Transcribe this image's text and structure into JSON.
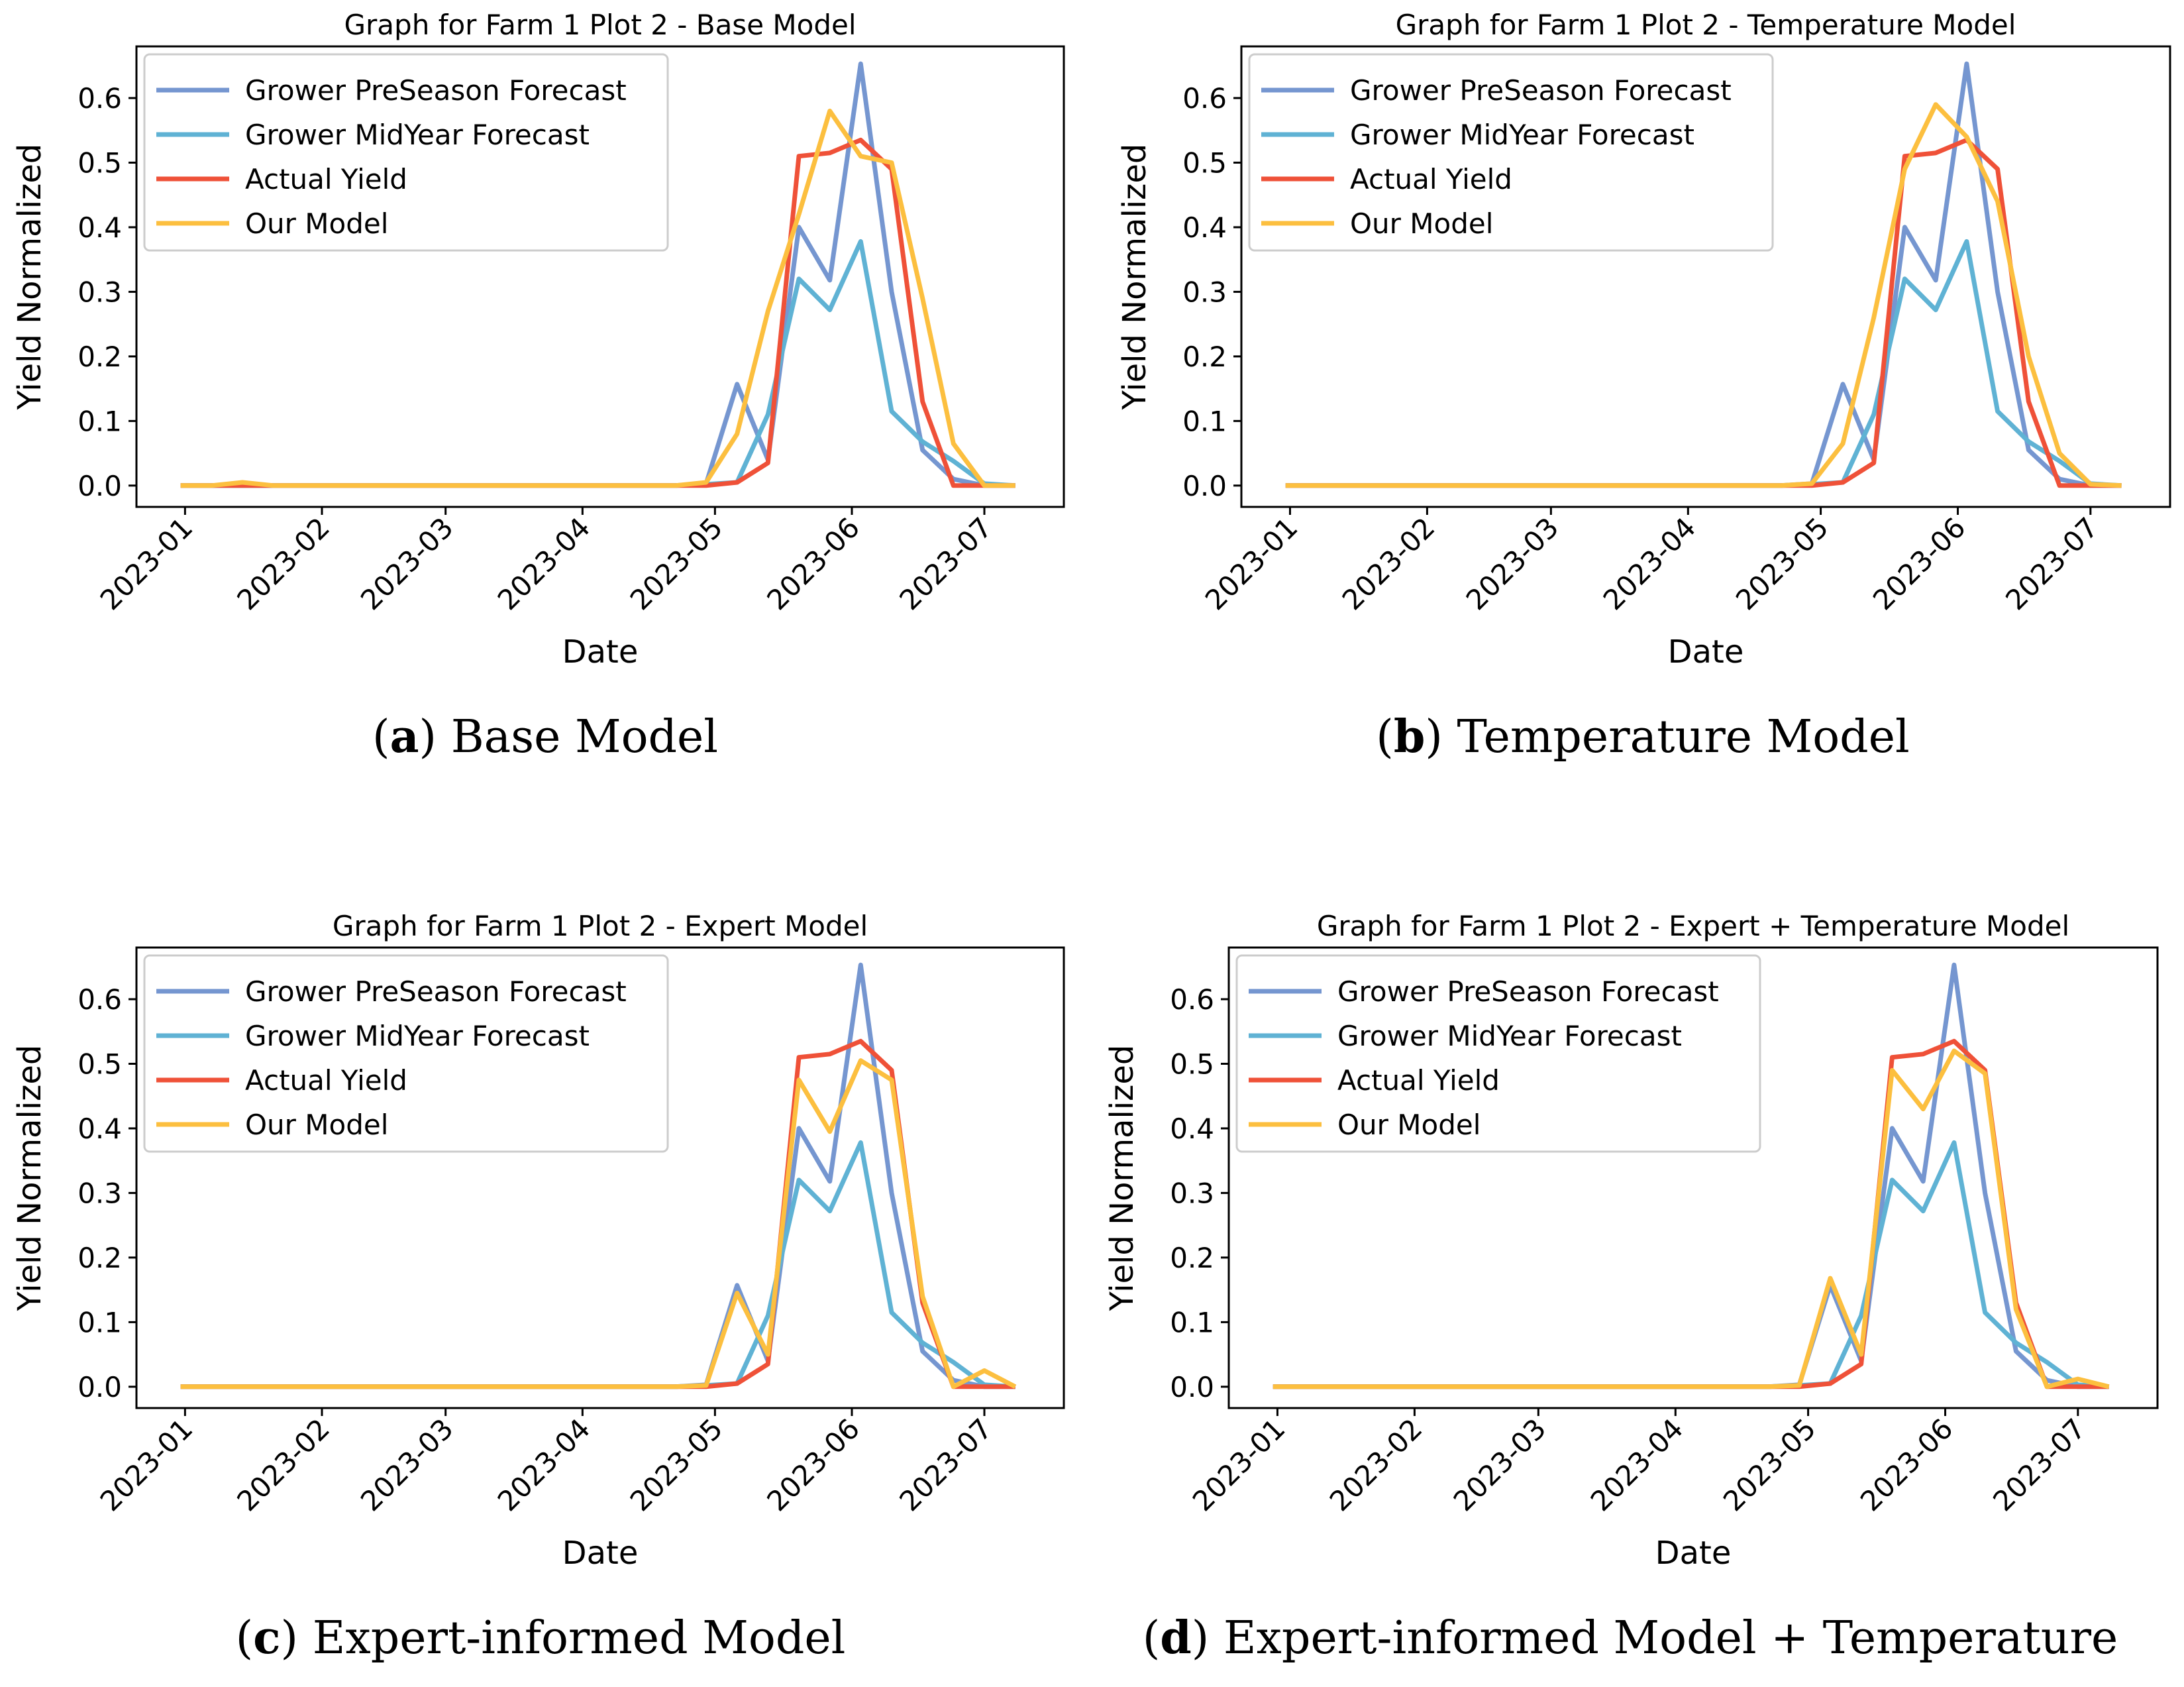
{
  "figure": {
    "captions": [
      {
        "letter": "a",
        "paren_open": "(",
        "paren_close": ")",
        "text": " Base Model"
      },
      {
        "letter": "b",
        "paren_open": "(",
        "paren_close": ")",
        "text": " Temperature Model"
      },
      {
        "letter": "c",
        "paren_open": "(",
        "paren_close": ")",
        "text": " Expert-informed Model"
      },
      {
        "letter": "d",
        "paren_open": "(",
        "paren_close": ")",
        "text": " Expert-informed Model + Temperature"
      }
    ]
  },
  "colors": {
    "preseason": "#7596d0",
    "midyear": "#5fb2d4",
    "actual": "#ef5138",
    "model": "#fcbf3f"
  },
  "chart_data": [
    {
      "type": "line",
      "title": "Graph for Farm 1 Plot 2 - Base Model",
      "xlabel": "Date",
      "ylabel": "Yield Normalized",
      "x_ticks": [
        "2023-01",
        "2023-02",
        "2023-03",
        "2023-04",
        "2023-05",
        "2023-06",
        "2023-07"
      ],
      "x_tick_dates": [
        "2023-01-01",
        "2023-02-01",
        "2023-03-01",
        "2023-04-01",
        "2023-05-01",
        "2023-06-01",
        "2023-07-01"
      ],
      "y_ticks": [
        "0.0",
        "0.1",
        "0.2",
        "0.3",
        "0.4",
        "0.5",
        "0.6"
      ],
      "xlim": [
        "2022-12-21",
        "2023-07-19"
      ],
      "ylim": [
        -0.033,
        0.68
      ],
      "legend": "upper-left",
      "x": [
        "2022-12-31",
        "2023-01-07",
        "2023-01-14",
        "2023-01-21",
        "2023-01-28",
        "2023-02-04",
        "2023-02-11",
        "2023-02-18",
        "2023-02-25",
        "2023-03-04",
        "2023-03-11",
        "2023-03-18",
        "2023-03-25",
        "2023-04-01",
        "2023-04-08",
        "2023-04-15",
        "2023-04-22",
        "2023-04-29",
        "2023-05-06",
        "2023-05-13",
        "2023-05-20",
        "2023-05-27",
        "2023-06-03",
        "2023-06-10",
        "2023-06-17",
        "2023-06-24",
        "2023-07-01",
        "2023-07-08"
      ],
      "series": [
        {
          "name": "Grower PreSeason Forecast",
          "color_key": "preseason",
          "values": [
            0,
            0,
            0,
            0,
            0,
            0,
            0,
            0,
            0,
            0,
            0,
            0,
            0,
            0,
            0,
            0,
            0,
            0.003,
            0.157,
            0.04,
            0.4,
            0.318,
            0.653,
            0.3,
            0.055,
            0.01,
            0,
            0
          ]
        },
        {
          "name": "Grower MidYear Forecast",
          "color_key": "midyear",
          "values": [
            0,
            0,
            0,
            0,
            0,
            0,
            0,
            0,
            0,
            0,
            0,
            0,
            0,
            0,
            0,
            0,
            0,
            0.002,
            0.005,
            0.11,
            0.32,
            0.272,
            0.378,
            0.115,
            0.068,
            0.038,
            0.003,
            0
          ]
        },
        {
          "name": "Actual Yield",
          "color_key": "actual",
          "values": [
            0,
            0,
            0,
            0,
            0,
            0,
            0,
            0,
            0,
            0,
            0,
            0,
            0,
            0,
            0,
            0,
            0,
            0,
            0.005,
            0.035,
            0.51,
            0.515,
            0.535,
            0.49,
            0.13,
            0,
            0,
            0
          ]
        },
        {
          "name": "Our Model",
          "color_key": "model",
          "values": [
            0,
            0,
            0.005,
            0,
            0,
            0,
            0,
            0,
            0,
            0,
            0,
            0,
            0,
            0,
            0,
            0,
            0,
            0.005,
            0.08,
            0.27,
            0.42,
            0.58,
            0.51,
            0.5,
            0.29,
            0.065,
            0,
            0
          ]
        }
      ]
    },
    {
      "type": "line",
      "title": "Graph for Farm 1 Plot 2 - Temperature Model",
      "xlabel": "Date",
      "ylabel": "Yield Normalized",
      "x_ticks": [
        "2023-01",
        "2023-02",
        "2023-03",
        "2023-04",
        "2023-05",
        "2023-06",
        "2023-07"
      ],
      "x_tick_dates": [
        "2023-01-01",
        "2023-02-01",
        "2023-03-01",
        "2023-04-01",
        "2023-05-01",
        "2023-06-01",
        "2023-07-01"
      ],
      "y_ticks": [
        "0.0",
        "0.1",
        "0.2",
        "0.3",
        "0.4",
        "0.5",
        "0.6"
      ],
      "xlim": [
        "2022-12-21",
        "2023-07-19"
      ],
      "ylim": [
        -0.033,
        0.68
      ],
      "legend": "upper-left",
      "x": [
        "2022-12-31",
        "2023-01-07",
        "2023-01-14",
        "2023-01-21",
        "2023-01-28",
        "2023-02-04",
        "2023-02-11",
        "2023-02-18",
        "2023-02-25",
        "2023-03-04",
        "2023-03-11",
        "2023-03-18",
        "2023-03-25",
        "2023-04-01",
        "2023-04-08",
        "2023-04-15",
        "2023-04-22",
        "2023-04-29",
        "2023-05-06",
        "2023-05-13",
        "2023-05-20",
        "2023-05-27",
        "2023-06-03",
        "2023-06-10",
        "2023-06-17",
        "2023-06-24",
        "2023-07-01",
        "2023-07-08"
      ],
      "series": [
        {
          "name": "Grower PreSeason Forecast",
          "color_key": "preseason",
          "values": [
            0,
            0,
            0,
            0,
            0,
            0,
            0,
            0,
            0,
            0,
            0,
            0,
            0,
            0,
            0,
            0,
            0,
            0.003,
            0.157,
            0.04,
            0.4,
            0.318,
            0.653,
            0.3,
            0.055,
            0.01,
            0,
            0
          ]
        },
        {
          "name": "Grower MidYear Forecast",
          "color_key": "midyear",
          "values": [
            0,
            0,
            0,
            0,
            0,
            0,
            0,
            0,
            0,
            0,
            0,
            0,
            0,
            0,
            0,
            0,
            0,
            0.002,
            0.005,
            0.11,
            0.32,
            0.272,
            0.378,
            0.115,
            0.068,
            0.038,
            0.003,
            0
          ]
        },
        {
          "name": "Actual Yield",
          "color_key": "actual",
          "values": [
            0,
            0,
            0,
            0,
            0,
            0,
            0,
            0,
            0,
            0,
            0,
            0,
            0,
            0,
            0,
            0,
            0,
            0,
            0.005,
            0.035,
            0.51,
            0.515,
            0.535,
            0.49,
            0.13,
            0,
            0,
            0
          ]
        },
        {
          "name": "Our Model",
          "color_key": "model",
          "values": [
            0,
            0,
            0,
            0,
            0,
            0,
            0,
            0,
            0,
            0,
            0,
            0,
            0,
            0,
            0,
            0,
            0,
            0.003,
            0.065,
            0.26,
            0.49,
            0.59,
            0.54,
            0.44,
            0.2,
            0.05,
            0.002,
            0
          ]
        }
      ]
    },
    {
      "type": "line",
      "title": "Graph for Farm 1 Plot 2 - Expert Model",
      "xlabel": "Date",
      "ylabel": "Yield Normalized",
      "x_ticks": [
        "2023-01",
        "2023-02",
        "2023-03",
        "2023-04",
        "2023-05",
        "2023-06",
        "2023-07"
      ],
      "x_tick_dates": [
        "2023-01-01",
        "2023-02-01",
        "2023-03-01",
        "2023-04-01",
        "2023-05-01",
        "2023-06-01",
        "2023-07-01"
      ],
      "y_ticks": [
        "0.0",
        "0.1",
        "0.2",
        "0.3",
        "0.4",
        "0.5",
        "0.6"
      ],
      "xlim": [
        "2022-12-21",
        "2023-07-19"
      ],
      "ylim": [
        -0.033,
        0.68
      ],
      "legend": "upper-left",
      "x": [
        "2022-12-31",
        "2023-01-07",
        "2023-01-14",
        "2023-01-21",
        "2023-01-28",
        "2023-02-04",
        "2023-02-11",
        "2023-02-18",
        "2023-02-25",
        "2023-03-04",
        "2023-03-11",
        "2023-03-18",
        "2023-03-25",
        "2023-04-01",
        "2023-04-08",
        "2023-04-15",
        "2023-04-22",
        "2023-04-29",
        "2023-05-06",
        "2023-05-13",
        "2023-05-20",
        "2023-05-27",
        "2023-06-03",
        "2023-06-10",
        "2023-06-17",
        "2023-06-24",
        "2023-07-01",
        "2023-07-08"
      ],
      "series": [
        {
          "name": "Grower PreSeason Forecast",
          "color_key": "preseason",
          "values": [
            0,
            0,
            0,
            0,
            0,
            0,
            0,
            0,
            0,
            0,
            0,
            0,
            0,
            0,
            0,
            0,
            0,
            0.003,
            0.157,
            0.04,
            0.4,
            0.318,
            0.653,
            0.3,
            0.055,
            0.01,
            0,
            0
          ]
        },
        {
          "name": "Grower MidYear Forecast",
          "color_key": "midyear",
          "values": [
            0,
            0,
            0,
            0,
            0,
            0,
            0,
            0,
            0,
            0,
            0,
            0,
            0,
            0,
            0,
            0,
            0,
            0.002,
            0.005,
            0.11,
            0.32,
            0.272,
            0.378,
            0.115,
            0.068,
            0.038,
            0.003,
            0
          ]
        },
        {
          "name": "Actual Yield",
          "color_key": "actual",
          "values": [
            0,
            0,
            0,
            0,
            0,
            0,
            0,
            0,
            0,
            0,
            0,
            0,
            0,
            0,
            0,
            0,
            0,
            0,
            0.005,
            0.035,
            0.51,
            0.515,
            0.535,
            0.49,
            0.13,
            0,
            0,
            0
          ]
        },
        {
          "name": "Our Model",
          "color_key": "model",
          "values": [
            0,
            0,
            0,
            0,
            0,
            0,
            0,
            0,
            0,
            0,
            0,
            0,
            0,
            0,
            0,
            0,
            0,
            0.002,
            0.145,
            0.05,
            0.475,
            0.395,
            0.505,
            0.475,
            0.14,
            0,
            0.025,
            0
          ]
        }
      ]
    },
    {
      "type": "line",
      "title": "Graph for Farm 1 Plot 2 - Expert + Temperature Model",
      "xlabel": "Date",
      "ylabel": "Yield Normalized",
      "x_ticks": [
        "2023-01",
        "2023-02",
        "2023-03",
        "2023-04",
        "2023-05",
        "2023-06",
        "2023-07"
      ],
      "x_tick_dates": [
        "2023-01-01",
        "2023-02-01",
        "2023-03-01",
        "2023-04-01",
        "2023-05-01",
        "2023-06-01",
        "2023-07-01"
      ],
      "y_ticks": [
        "0.0",
        "0.1",
        "0.2",
        "0.3",
        "0.4",
        "0.5",
        "0.6"
      ],
      "xlim": [
        "2022-12-21",
        "2023-07-19"
      ],
      "ylim": [
        -0.033,
        0.68
      ],
      "legend": "upper-left",
      "x": [
        "2022-12-31",
        "2023-01-07",
        "2023-01-14",
        "2023-01-21",
        "2023-01-28",
        "2023-02-04",
        "2023-02-11",
        "2023-02-18",
        "2023-02-25",
        "2023-03-04",
        "2023-03-11",
        "2023-03-18",
        "2023-03-25",
        "2023-04-01",
        "2023-04-08",
        "2023-04-15",
        "2023-04-22",
        "2023-04-29",
        "2023-05-06",
        "2023-05-13",
        "2023-05-20",
        "2023-05-27",
        "2023-06-03",
        "2023-06-10",
        "2023-06-17",
        "2023-06-24",
        "2023-07-01",
        "2023-07-08"
      ],
      "series": [
        {
          "name": "Grower PreSeason Forecast",
          "color_key": "preseason",
          "values": [
            0,
            0,
            0,
            0,
            0,
            0,
            0,
            0,
            0,
            0,
            0,
            0,
            0,
            0,
            0,
            0,
            0,
            0.003,
            0.157,
            0.04,
            0.4,
            0.318,
            0.653,
            0.3,
            0.055,
            0.01,
            0,
            0
          ]
        },
        {
          "name": "Grower MidYear Forecast",
          "color_key": "midyear",
          "values": [
            0,
            0,
            0,
            0,
            0,
            0,
            0,
            0,
            0,
            0,
            0,
            0,
            0,
            0,
            0,
            0,
            0,
            0.002,
            0.005,
            0.11,
            0.32,
            0.272,
            0.378,
            0.115,
            0.068,
            0.038,
            0.003,
            0
          ]
        },
        {
          "name": "Actual Yield",
          "color_key": "actual",
          "values": [
            0,
            0,
            0,
            0,
            0,
            0,
            0,
            0,
            0,
            0,
            0,
            0,
            0,
            0,
            0,
            0,
            0,
            0,
            0.005,
            0.035,
            0.51,
            0.515,
            0.535,
            0.49,
            0.13,
            0,
            0,
            0
          ]
        },
        {
          "name": "Our Model",
          "color_key": "model",
          "values": [
            0,
            0,
            0,
            0,
            0,
            0,
            0,
            0,
            0,
            0,
            0,
            0,
            0,
            0,
            0,
            0,
            0,
            0.002,
            0.168,
            0.05,
            0.49,
            0.43,
            0.52,
            0.485,
            0.12,
            0,
            0.012,
            0
          ]
        }
      ]
    }
  ]
}
